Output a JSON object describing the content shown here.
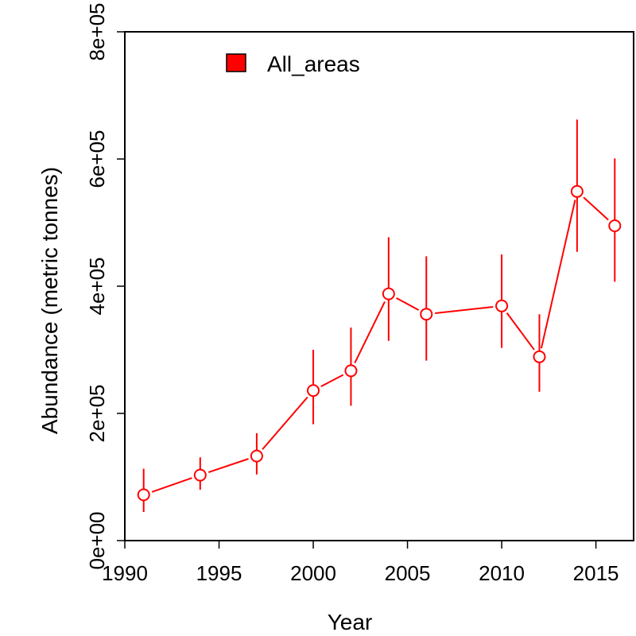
{
  "chart_data": {
    "type": "line",
    "xlabel": "Year",
    "ylabel": "Abundance (metric tonnes)",
    "xlim": [
      1990,
      2017
    ],
    "ylim": [
      0,
      800000
    ],
    "x_ticks": [
      1990,
      1995,
      2000,
      2005,
      2010,
      2015
    ],
    "y_ticks": [
      0,
      200000,
      400000,
      600000,
      800000
    ],
    "x_tick_labels": [
      "1990",
      "1995",
      "2000",
      "2005",
      "2010",
      "2015"
    ],
    "y_tick_labels": [
      "0e+00",
      "2e+05",
      "4e+05",
      "6e+05",
      "8e+05"
    ],
    "legend_position": "top-left",
    "grid": false,
    "series": [
      {
        "name": "All_areas",
        "color": "#ff0000",
        "marker": "open-circle",
        "error_bars": true,
        "points": [
          {
            "x": 1991,
            "y": 72000,
            "low": 45000,
            "high": 113000
          },
          {
            "x": 1994,
            "y": 103000,
            "low": 80000,
            "high": 131000
          },
          {
            "x": 1997,
            "y": 133000,
            "low": 104000,
            "high": 169000
          },
          {
            "x": 2000,
            "y": 236000,
            "low": 183000,
            "high": 300000
          },
          {
            "x": 2002,
            "y": 267000,
            "low": 212000,
            "high": 335000
          },
          {
            "x": 2004,
            "y": 388000,
            "low": 314000,
            "high": 477000
          },
          {
            "x": 2006,
            "y": 356000,
            "low": 283000,
            "high": 447000
          },
          {
            "x": 2010,
            "y": 369000,
            "low": 303000,
            "high": 450000
          },
          {
            "x": 2012,
            "y": 289000,
            "low": 234000,
            "high": 356000
          },
          {
            "x": 2014,
            "y": 549000,
            "low": 454000,
            "high": 662000
          },
          {
            "x": 2016,
            "y": 495000,
            "low": 407000,
            "high": 601000
          }
        ]
      }
    ]
  }
}
